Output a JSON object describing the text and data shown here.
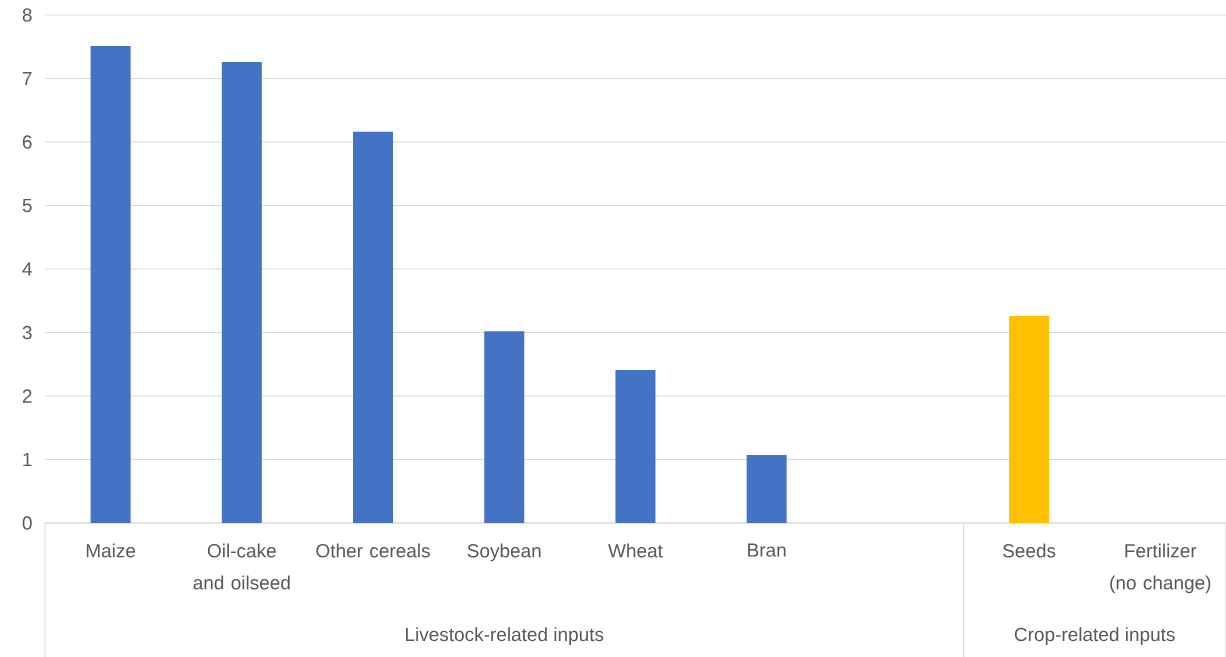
{
  "chart_data": {
    "type": "bar",
    "categories": [
      "Maize",
      "Oil-cake and oilseed",
      "Other cereals",
      "Soybean",
      "Wheat",
      "Bran",
      null,
      "Seeds",
      "Fertilizer (no change)"
    ],
    "values": [
      7.51,
      7.26,
      6.16,
      3.02,
      2.41,
      1.07,
      null,
      3.26,
      0
    ],
    "colors": [
      "#4472c4",
      "#4472c4",
      "#4472c4",
      "#4472c4",
      "#4472c4",
      "#4472c4",
      "#4472c4",
      "#ffc000",
      "#ffc000"
    ],
    "ylim": [
      0,
      8
    ],
    "yticks": [
      0,
      1,
      2,
      3,
      4,
      5,
      6,
      7,
      8
    ],
    "grid": "y",
    "annotations": [
      "Livestock-related inputs",
      "Crop-related inputs"
    ]
  }
}
